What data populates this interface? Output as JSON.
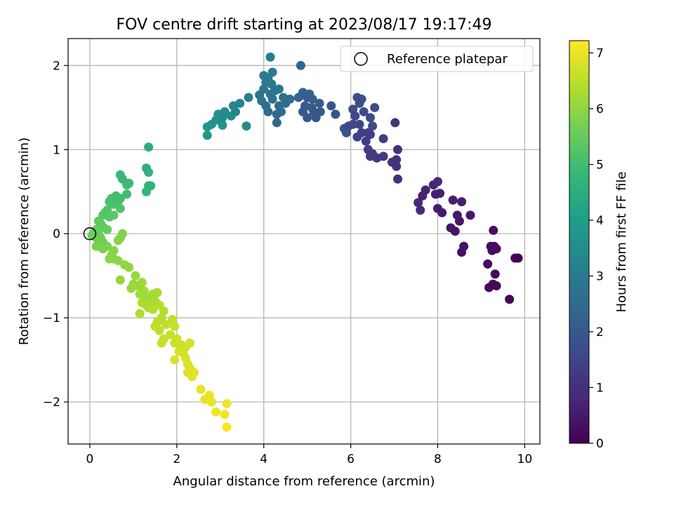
{
  "chart_data": {
    "type": "scatter",
    "title": "FOV centre drift starting at 2023/08/17 19:17:49",
    "xlabel": "Angular distance from reference (arcmin)",
    "ylabel": "Rotation from reference (arcmin)",
    "xlim": [
      -0.5,
      10.35
    ],
    "ylim": [
      -2.5,
      2.32
    ],
    "xticks": [
      0,
      2,
      4,
      6,
      8,
      10
    ],
    "xtick_labels": [
      "0",
      "2",
      "4",
      "6",
      "8",
      "10"
    ],
    "yticks": [
      -2,
      -1,
      0,
      1,
      2
    ],
    "ytick_labels": [
      "−2",
      "−1",
      "0",
      "1",
      "2"
    ],
    "grid": true,
    "legend": {
      "position": "top-right",
      "entries": [
        "Reference platepar"
      ]
    },
    "reference_point": {
      "x": 0,
      "y": 0,
      "label": "Reference platepar"
    },
    "colorbar": {
      "label": "Hours from first FF file",
      "range": [
        0,
        7.22
      ],
      "ticks": [
        0,
        1,
        2,
        3,
        4,
        5,
        6,
        7
      ],
      "tick_labels": [
        "0",
        "1",
        "2",
        "3",
        "4",
        "5",
        "6",
        "7"
      ],
      "colormap": "viridis",
      "colors": [
        "#440154",
        "#482878",
        "#3e4989",
        "#31688e",
        "#26828e",
        "#1f9e89",
        "#35b779",
        "#6ece58",
        "#b5de2b",
        "#fde725"
      ]
    },
    "points": [
      [
        9.85,
        -0.29,
        0.05
      ],
      [
        9.78,
        -0.29,
        0.07
      ],
      [
        9.65,
        -0.78,
        0.1
      ],
      [
        9.35,
        -0.62,
        0.12
      ],
      [
        9.27,
        -0.6,
        0.14
      ],
      [
        9.32,
        -0.48,
        0.16
      ],
      [
        9.18,
        -0.64,
        0.18
      ],
      [
        9.15,
        -0.36,
        0.2
      ],
      [
        9.25,
        -0.2,
        0.22
      ],
      [
        9.3,
        -0.15,
        0.24
      ],
      [
        9.22,
        -0.15,
        0.26
      ],
      [
        9.35,
        -0.18,
        0.28
      ],
      [
        9.28,
        0.04,
        0.3
      ],
      [
        8.6,
        -0.15,
        0.34
      ],
      [
        8.55,
        -0.22,
        0.36
      ],
      [
        8.4,
        0.03,
        0.4
      ],
      [
        8.3,
        0.07,
        0.42
      ],
      [
        8.5,
        0.15,
        0.44
      ],
      [
        8.75,
        0.22,
        0.46
      ],
      [
        8.45,
        0.22,
        0.5
      ],
      [
        8.1,
        0.25,
        0.53
      ],
      [
        8.0,
        0.3,
        0.56
      ],
      [
        8.55,
        0.38,
        0.58
      ],
      [
        8.35,
        0.4,
        0.6
      ],
      [
        8.05,
        0.48,
        0.63
      ],
      [
        7.95,
        0.47,
        0.66
      ],
      [
        7.65,
        0.45,
        0.7
      ],
      [
        7.72,
        0.52,
        0.74
      ],
      [
        7.9,
        0.58,
        0.77
      ],
      [
        8.0,
        0.62,
        0.8
      ],
      [
        7.55,
        0.37,
        0.84
      ],
      [
        7.6,
        0.28,
        0.87
      ],
      [
        7.08,
        0.65,
        0.95
      ],
      [
        7.05,
        0.88,
        1.0
      ],
      [
        7.08,
        1.0,
        1.04
      ],
      [
        6.95,
        0.85,
        1.08
      ],
      [
        7.05,
        0.8,
        1.1
      ],
      [
        7.02,
        1.32,
        1.12
      ],
      [
        6.75,
        0.92,
        1.16
      ],
      [
        6.6,
        0.9,
        1.2
      ],
      [
        6.5,
        0.95,
        1.22
      ],
      [
        6.45,
        0.92,
        1.25
      ],
      [
        6.75,
        1.13,
        1.28
      ],
      [
        6.4,
        1.0,
        1.3
      ],
      [
        6.35,
        1.1,
        1.32
      ],
      [
        6.4,
        1.2,
        1.35
      ],
      [
        6.45,
        1.18,
        1.38
      ],
      [
        6.25,
        1.2,
        1.42
      ],
      [
        6.15,
        1.15,
        1.45
      ],
      [
        6.2,
        1.3,
        1.48
      ],
      [
        6.1,
        1.4,
        1.5
      ],
      [
        6.05,
        1.3,
        1.53
      ],
      [
        5.95,
        1.28,
        1.56
      ],
      [
        6.5,
        1.28,
        1.6
      ],
      [
        6.45,
        1.38,
        1.62
      ],
      [
        6.55,
        1.5,
        1.65
      ],
      [
        6.3,
        1.45,
        1.68
      ],
      [
        6.05,
        1.48,
        1.7
      ],
      [
        6.2,
        1.55,
        1.73
      ],
      [
        6.15,
        1.62,
        1.76
      ],
      [
        6.25,
        1.6,
        1.8
      ],
      [
        5.85,
        1.25,
        1.83
      ],
      [
        5.9,
        1.2,
        1.85
      ],
      [
        5.65,
        1.42,
        1.88
      ],
      [
        5.55,
        1.52,
        1.9
      ],
      [
        5.15,
        1.45,
        1.93
      ],
      [
        5.2,
        1.38,
        1.96
      ],
      [
        5.0,
        1.38,
        2.0
      ],
      [
        4.9,
        1.45,
        2.03
      ],
      [
        4.95,
        1.52,
        2.05
      ],
      [
        5.1,
        1.5,
        2.08
      ],
      [
        5.3,
        1.45,
        2.1
      ],
      [
        5.28,
        1.55,
        2.13
      ],
      [
        5.0,
        1.62,
        2.16
      ],
      [
        5.12,
        1.6,
        2.2
      ],
      [
        5.05,
        1.66,
        2.23
      ],
      [
        4.95,
        1.65,
        2.26
      ],
      [
        4.8,
        1.62,
        2.3
      ],
      [
        4.9,
        1.68,
        2.33
      ],
      [
        4.85,
        2.0,
        2.36
      ],
      [
        4.3,
        1.32,
        2.4
      ],
      [
        4.3,
        1.42,
        2.43
      ],
      [
        4.4,
        1.45,
        2.46
      ],
      [
        4.1,
        1.45,
        2.5
      ],
      [
        4.05,
        1.52,
        2.53
      ],
      [
        4.35,
        1.52,
        2.56
      ],
      [
        4.5,
        1.55,
        2.6
      ],
      [
        4.6,
        1.6,
        2.63
      ],
      [
        4.45,
        1.62,
        2.66
      ],
      [
        4.2,
        1.6,
        2.7
      ],
      [
        4.15,
        1.66,
        2.73
      ],
      [
        3.95,
        1.58,
        2.76
      ],
      [
        3.9,
        1.65,
        2.8
      ],
      [
        4.0,
        1.72,
        2.83
      ],
      [
        4.25,
        1.7,
        2.86
      ],
      [
        4.35,
        1.72,
        2.9
      ],
      [
        4.05,
        1.8,
        2.93
      ],
      [
        4.18,
        1.78,
        2.96
      ],
      [
        4.1,
        1.85,
        3.0
      ],
      [
        4.0,
        1.88,
        3.03
      ],
      [
        4.2,
        1.92,
        3.06
      ],
      [
        4.15,
        2.1,
        3.1
      ],
      [
        3.65,
        1.62,
        3.2
      ],
      [
        3.45,
        1.55,
        3.25
      ],
      [
        3.35,
        1.45,
        3.3
      ],
      [
        3.3,
        1.52,
        3.35
      ],
      [
        3.6,
        1.28,
        3.4
      ],
      [
        3.1,
        1.45,
        3.45
      ],
      [
        3.05,
        1.38,
        3.5
      ],
      [
        3.25,
        1.4,
        3.55
      ],
      [
        2.95,
        1.42,
        3.6
      ],
      [
        2.9,
        1.35,
        3.65
      ],
      [
        3.05,
        1.29,
        3.7
      ],
      [
        2.8,
        1.3,
        3.75
      ],
      [
        2.7,
        1.27,
        3.8
      ],
      [
        2.7,
        1.17,
        3.85
      ],
      [
        1.35,
        1.03,
        4.5
      ],
      [
        1.3,
        0.78,
        4.6
      ],
      [
        1.35,
        0.73,
        4.65
      ],
      [
        1.4,
        0.57,
        4.7
      ],
      [
        1.35,
        0.57,
        4.75
      ],
      [
        1.3,
        0.5,
        4.8
      ],
      [
        0.75,
        0.65,
        4.85
      ],
      [
        0.7,
        0.7,
        4.88
      ],
      [
        0.9,
        0.6,
        4.92
      ],
      [
        0.85,
        0.58,
        4.95
      ],
      [
        0.85,
        0.47,
        4.98
      ],
      [
        0.7,
        0.42,
        5.02
      ],
      [
        0.6,
        0.45,
        5.05
      ],
      [
        0.5,
        0.42,
        5.08
      ],
      [
        0.45,
        0.38,
        5.12
      ],
      [
        0.55,
        0.35,
        5.15
      ],
      [
        0.65,
        0.38,
        5.18
      ],
      [
        0.7,
        0.3,
        5.2
      ],
      [
        0.4,
        0.28,
        5.23
      ],
      [
        0.35,
        0.25,
        5.26
      ],
      [
        0.3,
        0.22,
        5.3
      ],
      [
        0.45,
        0.2,
        5.33
      ],
      [
        0.55,
        0.22,
        5.36
      ],
      [
        0.2,
        0.15,
        5.4
      ],
      [
        0.25,
        0.12,
        5.43
      ],
      [
        0.3,
        0.08,
        5.46
      ],
      [
        0.4,
        0.05,
        5.5
      ],
      [
        0.15,
        0.05,
        5.52
      ],
      [
        0.1,
        0.02,
        5.55
      ],
      [
        0.2,
        0.0,
        5.58
      ],
      [
        0.05,
        -0.02,
        5.6
      ],
      [
        0.15,
        -0.05,
        5.63
      ],
      [
        0.25,
        -0.05,
        5.66
      ],
      [
        0.3,
        -0.1,
        5.7
      ],
      [
        0.2,
        -0.12,
        5.72
      ],
      [
        0.15,
        -0.15,
        5.75
      ],
      [
        0.3,
        -0.18,
        5.78
      ],
      [
        0.4,
        -0.15,
        5.8
      ],
      [
        0.75,
        0.0,
        5.83
      ],
      [
        0.7,
        -0.05,
        5.85
      ],
      [
        0.65,
        -0.08,
        5.88
      ],
      [
        0.55,
        -0.2,
        5.9
      ],
      [
        0.5,
        -0.25,
        5.92
      ],
      [
        0.45,
        -0.3,
        5.95
      ],
      [
        0.55,
        -0.3,
        5.97
      ],
      [
        0.65,
        -0.32,
        6.0
      ],
      [
        0.8,
        -0.37,
        6.02
      ],
      [
        0.9,
        -0.4,
        6.04
      ],
      [
        0.7,
        -0.55,
        6.06
      ],
      [
        1.05,
        -0.5,
        6.08
      ],
      [
        1.0,
        -0.6,
        6.1
      ],
      [
        0.95,
        -0.65,
        6.12
      ],
      [
        1.1,
        -0.62,
        6.14
      ],
      [
        1.2,
        -0.58,
        6.16
      ],
      [
        1.25,
        -0.68,
        6.18
      ],
      [
        1.15,
        -0.72,
        6.2
      ],
      [
        1.3,
        -0.75,
        6.22
      ],
      [
        1.45,
        -0.72,
        6.24
      ],
      [
        1.55,
        -0.7,
        6.26
      ],
      [
        1.5,
        -0.8,
        6.28
      ],
      [
        1.4,
        -0.82,
        6.3
      ],
      [
        1.3,
        -0.85,
        6.32
      ],
      [
        1.2,
        -0.82,
        6.34
      ],
      [
        1.15,
        -0.95,
        6.36
      ],
      [
        1.35,
        -0.88,
        6.38
      ],
      [
        1.45,
        -0.9,
        6.4
      ],
      [
        1.6,
        -0.85,
        6.42
      ],
      [
        1.7,
        -0.92,
        6.44
      ],
      [
        1.65,
        -1.0,
        6.46
      ],
      [
        1.55,
        -1.05,
        6.48
      ],
      [
        1.5,
        -1.1,
        6.5
      ],
      [
        1.6,
        -1.15,
        6.52
      ],
      [
        1.75,
        -1.08,
        6.54
      ],
      [
        1.9,
        -1.02,
        6.56
      ],
      [
        1.95,
        -1.1,
        6.58
      ],
      [
        1.85,
        -1.2,
        6.6
      ],
      [
        1.7,
        -1.25,
        6.62
      ],
      [
        1.65,
        -1.3,
        6.64
      ],
      [
        1.95,
        -1.3,
        6.66
      ],
      [
        2.0,
        -1.25,
        6.68
      ],
      [
        2.1,
        -1.32,
        6.7
      ],
      [
        2.2,
        -1.35,
        6.72
      ],
      [
        2.3,
        -1.3,
        6.74
      ],
      [
        2.15,
        -1.42,
        6.76
      ],
      [
        2.05,
        -1.4,
        6.78
      ],
      [
        1.95,
        -1.5,
        6.8
      ],
      [
        2.2,
        -1.48,
        6.82
      ],
      [
        2.25,
        -1.55,
        6.84
      ],
      [
        2.3,
        -1.6,
        6.86
      ],
      [
        2.25,
        -1.65,
        6.88
      ],
      [
        2.4,
        -1.65,
        6.9
      ],
      [
        2.35,
        -1.7,
        6.92
      ],
      [
        2.55,
        -1.85,
        6.95
      ],
      [
        2.65,
        -1.97,
        6.98
      ],
      [
        2.75,
        -1.92,
        7.0
      ],
      [
        2.8,
        -2.0,
        7.02
      ],
      [
        2.9,
        -2.12,
        7.05
      ],
      [
        3.15,
        -2.02,
        7.08
      ],
      [
        3.1,
        -2.15,
        7.1
      ],
      [
        3.15,
        -2.3,
        7.15
      ]
    ]
  }
}
